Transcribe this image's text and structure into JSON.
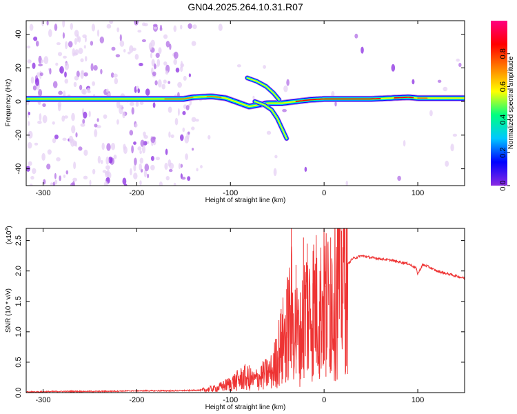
{
  "title": "GN04.2025.264.10.31.R07",
  "chart_data": [
    {
      "type": "heatmap",
      "title": "GN04.2025.264.10.31.R07",
      "xlabel": "Height of straight line (km)",
      "ylabel": "Frequency (Hz)",
      "xlim": [
        -318,
        150
      ],
      "ylim": [
        -50,
        48
      ],
      "xticks": [
        -300,
        -200,
        -100,
        0,
        100
      ],
      "yticks": [
        -40,
        -20,
        0,
        20,
        40
      ],
      "colorbar": {
        "label": "Normalized spectral amplitude",
        "range": [
          0,
          1
        ],
        "ticks": [
          0.0,
          0.2,
          0.4,
          0.6,
          0.8
        ],
        "colormap": [
          "#ffffff",
          "#e6d0f4",
          "#b26fe6",
          "#8a2be2",
          "#0000ff",
          "#00c8ff",
          "#00ff80",
          "#ffff00",
          "#ff8000",
          "#ff0000",
          "#ff0080"
        ]
      },
      "ridges": [
        {
          "name": "",
          "x": [
            -318,
            -260,
            -200,
            -150,
            -140,
            -120,
            -105,
            -90,
            -80,
            -60,
            -45,
            -30,
            -15,
            0,
            50,
            90,
            100,
            150
          ],
          "y": [
            1.5,
            1.5,
            1.5,
            1.5,
            2.5,
            3,
            2,
            -1,
            -3,
            -1,
            -1,
            0,
            1,
            1.5,
            1.5,
            2.5,
            2,
            2
          ]
        },
        {
          "name": "",
          "x": [
            -82,
            -72,
            -62,
            -54,
            -48
          ],
          "y": [
            14,
            12,
            9,
            5,
            1
          ]
        },
        {
          "name": "",
          "x": [
            -74,
            -64,
            -56,
            -50,
            -45,
            -40
          ],
          "y": [
            0,
            -2,
            -5,
            -10,
            -16,
            -22
          ]
        }
      ]
    },
    {
      "type": "line",
      "xlabel": "Height of straight line (km)",
      "ylabel": "SNR (10 * v/v)",
      "yscale_label": "(x10",
      "yscale_exp": "4",
      "xlim": [
        -318,
        150
      ],
      "ylim": [
        0,
        2.7
      ],
      "xticks": [
        -300,
        -200,
        -100,
        0,
        100
      ],
      "yticks": [
        0.0,
        0.5,
        1.0,
        1.5,
        2.0,
        2.5
      ],
      "color": "#ee3333",
      "x": [
        -318,
        -280,
        -240,
        -200,
        -160,
        -130,
        -115,
        -105,
        -95,
        -85,
        -75,
        -65,
        -55,
        -50,
        -45,
        -40,
        -35,
        -30,
        -25,
        -20,
        -15,
        -10,
        -5,
        0,
        5,
        10,
        15,
        20,
        25,
        30,
        40,
        50,
        60,
        70,
        80,
        90,
        98,
        100,
        105,
        110,
        120,
        130,
        140,
        150
      ],
      "y": [
        0.01,
        0.02,
        0.02,
        0.03,
        0.03,
        0.04,
        0.07,
        0.12,
        0.18,
        0.25,
        0.2,
        0.28,
        0.35,
        0.6,
        0.8,
        1.0,
        1.3,
        1.0,
        0.9,
        1.4,
        1.3,
        1.5,
        1.3,
        1.6,
        1.4,
        1.7,
        1.9,
        2.0,
        2.1,
        2.2,
        2.25,
        2.22,
        2.2,
        2.18,
        2.15,
        2.12,
        2.05,
        1.95,
        2.1,
        2.08,
        2.0,
        1.96,
        1.92,
        1.88
      ],
      "peaks": [
        {
          "x": -80,
          "y": 0.45
        },
        {
          "x": -45,
          "y": 1.0
        },
        {
          "x": -40,
          "y": 1.7
        },
        {
          "x": -35,
          "y": 2.7
        },
        {
          "x": -30,
          "y": 2.1
        },
        {
          "x": -22,
          "y": 2.55
        },
        {
          "x": -18,
          "y": 2.45
        },
        {
          "x": -12,
          "y": 1.8
        },
        {
          "x": -5,
          "y": 1.5
        },
        {
          "x": 2,
          "y": 1.75
        },
        {
          "x": 7,
          "y": 2.55
        }
      ]
    }
  ]
}
